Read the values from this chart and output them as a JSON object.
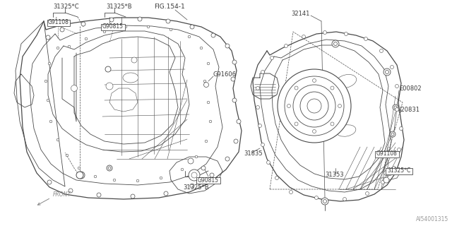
{
  "bg_color": "#ffffff",
  "line_color": "#4a4a4a",
  "label_color": "#3a3a3a",
  "fig_id": "AI54001315",
  "labels": {
    "31325C_top": "31325*C",
    "31325B_top": "31325*B",
    "G91108_top": "G91108",
    "G90815_top": "G90815",
    "FIG154": "FIG.154-1",
    "G91606": "G91606",
    "G90815_bot": "G90815",
    "31325B_bot": "31325*B",
    "31835": "31835",
    "32141": "32141",
    "E00802": "E00802",
    "J20831": "J20831",
    "G91108_bot": "G91108",
    "31353": "31353",
    "31325C_bot": "31325*C",
    "FRONT": "FRONT"
  },
  "lw_main": 0.9,
  "lw_inner": 0.6,
  "lw_thin": 0.4,
  "fs_label": 6.0,
  "fs_fig": 5.5
}
